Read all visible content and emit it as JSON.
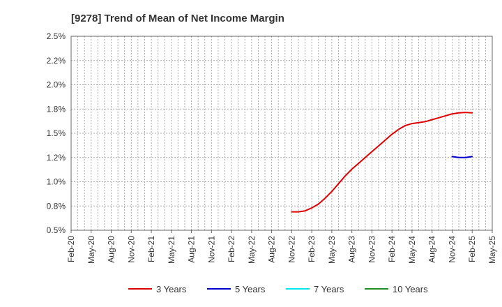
{
  "chart_data": {
    "type": "line",
    "title": "[9278]  Trend of Mean of Net Income Margin",
    "xlabel": "",
    "ylabel": "",
    "x_ticks": [
      "Feb-20",
      "May-20",
      "Aug-20",
      "Nov-20",
      "Feb-21",
      "May-21",
      "Aug-21",
      "Nov-21",
      "Feb-22",
      "May-22",
      "Aug-22",
      "Nov-22",
      "Feb-23",
      "May-23",
      "Aug-23",
      "Nov-23",
      "Feb-24",
      "May-24",
      "Aug-24",
      "Nov-24",
      "Feb-25",
      "May-25"
    ],
    "y_ticks": [
      {
        "value": 0.5,
        "label": "0.5%"
      },
      {
        "value": 0.75,
        "label": "0.8%"
      },
      {
        "value": 1.0,
        "label": "1.0%"
      },
      {
        "value": 1.25,
        "label": "1.2%"
      },
      {
        "value": 1.5,
        "label": "1.5%"
      },
      {
        "value": 1.75,
        "label": "1.8%"
      },
      {
        "value": 2.0,
        "label": "2.0%"
      },
      {
        "value": 2.25,
        "label": "2.2%"
      },
      {
        "value": 2.5,
        "label": "2.5%"
      }
    ],
    "ylim": [
      0.5,
      2.5
    ],
    "grid": true,
    "legend_position": "bottom",
    "series": [
      {
        "name": "3 Years",
        "color": "#dd0000",
        "points": [
          {
            "x": "Nov-22",
            "y": 0.69
          },
          {
            "x": "Dec-22",
            "y": 0.69
          },
          {
            "x": "Jan-23",
            "y": 0.7
          },
          {
            "x": "Feb-23",
            "y": 0.73
          },
          {
            "x": "Mar-23",
            "y": 0.77
          },
          {
            "x": "Apr-23",
            "y": 0.83
          },
          {
            "x": "May-23",
            "y": 0.9
          },
          {
            "x": "Jun-23",
            "y": 0.98
          },
          {
            "x": "Jul-23",
            "y": 1.06
          },
          {
            "x": "Aug-23",
            "y": 1.13
          },
          {
            "x": "Sep-23",
            "y": 1.19
          },
          {
            "x": "Oct-23",
            "y": 1.25
          },
          {
            "x": "Nov-23",
            "y": 1.31
          },
          {
            "x": "Dec-23",
            "y": 1.37
          },
          {
            "x": "Jan-24",
            "y": 1.43
          },
          {
            "x": "Feb-24",
            "y": 1.49
          },
          {
            "x": "Mar-24",
            "y": 1.54
          },
          {
            "x": "Apr-24",
            "y": 1.58
          },
          {
            "x": "May-24",
            "y": 1.6
          },
          {
            "x": "Jun-24",
            "y": 1.61
          },
          {
            "x": "Jul-24",
            "y": 1.62
          },
          {
            "x": "Aug-24",
            "y": 1.64
          },
          {
            "x": "Sep-24",
            "y": 1.66
          },
          {
            "x": "Oct-24",
            "y": 1.68
          },
          {
            "x": "Nov-24",
            "y": 1.7
          },
          {
            "x": "Dec-24",
            "y": 1.71
          },
          {
            "x": "Jan-25",
            "y": 1.715
          },
          {
            "x": "Feb-25",
            "y": 1.71
          }
        ]
      },
      {
        "name": "5 Years",
        "color": "#0000cc",
        "points": [
          {
            "x": "Nov-24",
            "y": 1.26
          },
          {
            "x": "Dec-24",
            "y": 1.25
          },
          {
            "x": "Jan-25",
            "y": 1.25
          },
          {
            "x": "Feb-25",
            "y": 1.26
          }
        ]
      },
      {
        "name": "7 Years",
        "color": "#00e5ee",
        "points": []
      },
      {
        "name": "10 Years",
        "color": "#228b22",
        "points": []
      }
    ]
  }
}
